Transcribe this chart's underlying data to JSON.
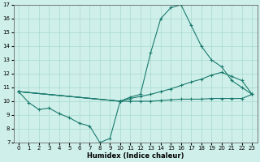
{
  "xlabel": "Humidex (Indice chaleur)",
  "bg_color": "#cff0ea",
  "line_color": "#1a7a6e",
  "xlim": [
    -0.5,
    23.5
  ],
  "ylim": [
    7,
    17
  ],
  "xticks": [
    0,
    1,
    2,
    3,
    4,
    5,
    6,
    7,
    8,
    9,
    10,
    11,
    12,
    13,
    14,
    15,
    16,
    17,
    18,
    19,
    20,
    21,
    22,
    23
  ],
  "yticks": [
    7,
    8,
    9,
    10,
    11,
    12,
    13,
    14,
    15,
    16,
    17
  ],
  "lines": [
    {
      "x": [
        0,
        1,
        2,
        3,
        4,
        5,
        6,
        7,
        8,
        9,
        10
      ],
      "y": [
        10.7,
        9.9,
        9.4,
        9.5,
        9.1,
        8.8,
        8.4,
        8.2,
        7.0,
        7.3,
        10.0
      ]
    },
    {
      "x": [
        0,
        10,
        11,
        12,
        13,
        14,
        15,
        16,
        17,
        18,
        19,
        20,
        21,
        22,
        23
      ],
      "y": [
        10.7,
        10.0,
        10.3,
        10.5,
        13.5,
        16.0,
        16.8,
        17.0,
        15.5,
        14.0,
        13.0,
        12.5,
        11.5,
        11.0,
        10.5
      ]
    },
    {
      "x": [
        0,
        10,
        11,
        12,
        13,
        14,
        15,
        16,
        17,
        18,
        19,
        20,
        21,
        22,
        23
      ],
      "y": [
        10.7,
        10.0,
        10.2,
        10.35,
        10.5,
        10.7,
        10.9,
        11.15,
        11.4,
        11.6,
        11.9,
        12.1,
        11.8,
        11.5,
        10.5
      ]
    },
    {
      "x": [
        0,
        10,
        11,
        12,
        13,
        14,
        15,
        16,
        17,
        18,
        19,
        20,
        21,
        22,
        23
      ],
      "y": [
        10.7,
        10.0,
        10.0,
        10.0,
        10.0,
        10.05,
        10.1,
        10.15,
        10.15,
        10.15,
        10.2,
        10.2,
        10.2,
        10.2,
        10.5
      ]
    }
  ]
}
